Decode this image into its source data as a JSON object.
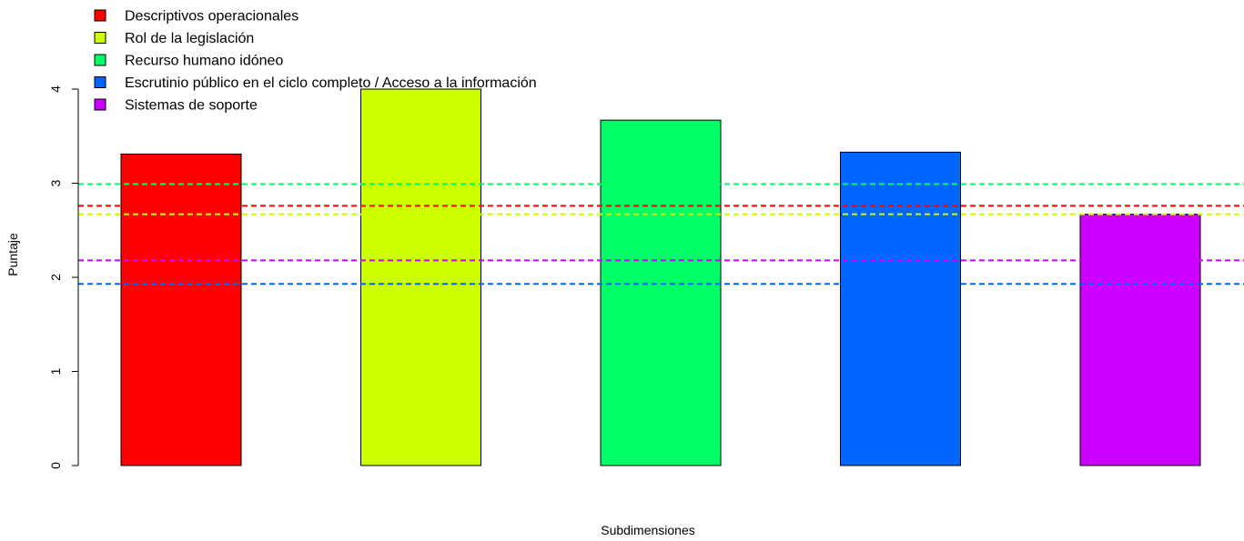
{
  "chart_data": {
    "type": "bar",
    "title": "",
    "xlabel": "Subdimensiones",
    "ylabel": "Puntaje",
    "ylim": [
      0,
      4
    ],
    "y_ticks": [
      "0",
      "1",
      "2",
      "3",
      "4"
    ],
    "grid": false,
    "legend_position": "top-left",
    "series": [
      {
        "name": "Descriptivos operacionales",
        "value": 3.31,
        "color": "#FF0000"
      },
      {
        "name": "Rol de la legislación",
        "value": 4.0,
        "color": "#CCFF00"
      },
      {
        "name": "Recurso humano idóneo",
        "value": 3.67,
        "color": "#00FF66"
      },
      {
        "name": "Escrutinio público en el ciclo completo / Acceso a la información",
        "value": 3.33,
        "color": "#0066FF"
      },
      {
        "name": "Sistemas de soporte",
        "value": 2.67,
        "color": "#CC00FF"
      }
    ],
    "reference_lines": [
      {
        "value": 2.76,
        "color": "#FF0000",
        "style": "dashed"
      },
      {
        "value": 2.67,
        "color": "#CCFF00",
        "style": "dashed"
      },
      {
        "value": 2.99,
        "color": "#00FF66",
        "style": "dashed"
      },
      {
        "value": 1.93,
        "color": "#0066FF",
        "style": "dashed"
      },
      {
        "value": 2.18,
        "color": "#CC00FF",
        "style": "dashed"
      }
    ]
  }
}
